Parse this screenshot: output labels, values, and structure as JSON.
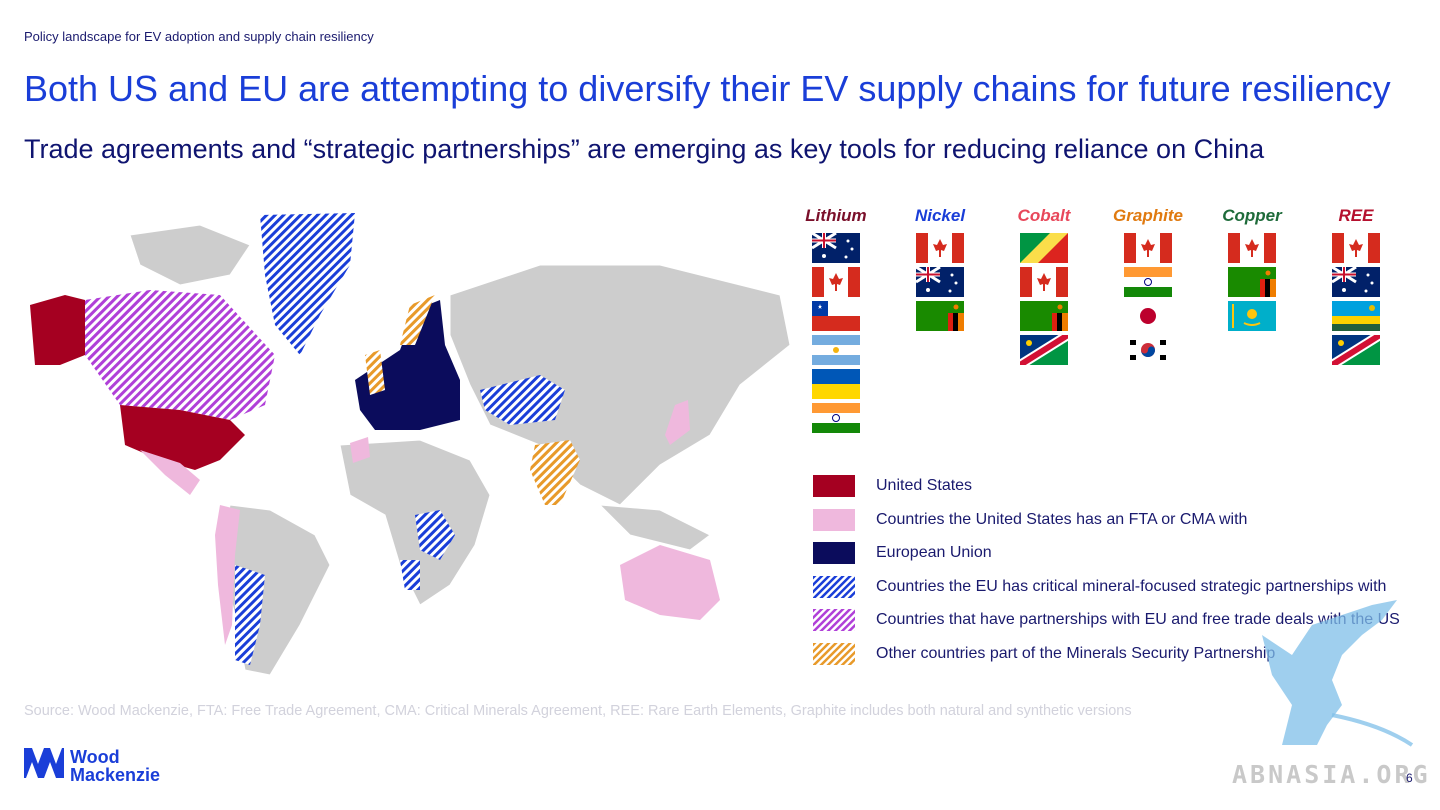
{
  "header": {
    "eyebrow": "Policy landscape for EV adoption and supply chain resiliency",
    "title": "Both US and EU are attempting to diversify their EV supply chains for future resiliency",
    "subtitle": "Trade agreements and “strategic partnerships” are emerging as key tools for reducing reliance on China"
  },
  "minerals": [
    {
      "label": "Lithium",
      "color": "#7a0f2a",
      "flags": [
        "australia",
        "canada",
        "chile",
        "argentina",
        "ukraine",
        "india"
      ]
    },
    {
      "label": "Nickel",
      "color": "#1a3ed8",
      "flags": [
        "canada",
        "australia",
        "zambia"
      ]
    },
    {
      "label": "Cobalt",
      "color": "#e8475a",
      "flags": [
        "congo",
        "canada",
        "zambia",
        "namibia"
      ]
    },
    {
      "label": "Graphite",
      "color": "#e07a10",
      "flags": [
        "canada",
        "india",
        "japan",
        "south-korea"
      ]
    },
    {
      "label": "Copper",
      "color": "#1e6b3a",
      "flags": [
        "canada",
        "zambia",
        "kazakhstan"
      ]
    },
    {
      "label": "REE",
      "color": "#b5102e",
      "flags": [
        "canada",
        "australia",
        "rwanda",
        "namibia"
      ]
    }
  ],
  "legend": [
    {
      "label": "United States",
      "fill": "#a50021",
      "pattern": "solid"
    },
    {
      "label": "Countries the United States has an FTA or CMA with",
      "fill": "#efb8dd",
      "pattern": "solid"
    },
    {
      "label": "European Union",
      "fill": "#0b0c5c",
      "pattern": "solid"
    },
    {
      "label": "Countries the EU has critical mineral-focused strategic partnerships with",
      "fill": "#1a3ed8",
      "pattern": "hatch"
    },
    {
      "label": "Countries that have partnerships with EU and free trade deals with the US",
      "fill": "#b040d8",
      "pattern": "hatch"
    },
    {
      "label": "Other countries part of the Minerals Security Partnership",
      "fill": "#e89a2a",
      "pattern": "hatch"
    }
  ],
  "footer": {
    "source": "Source: Wood Mackenzie, FTA: Free Trade Agreement, CMA: Critical Minerals Agreement, REE: Rare Earth Elements, Graphite includes both natural and synthetic versions",
    "logo_line1": "Wood",
    "logo_line2": "Mackenzie",
    "page_number": "6",
    "watermark_text": "ABNASIA.ORG"
  }
}
